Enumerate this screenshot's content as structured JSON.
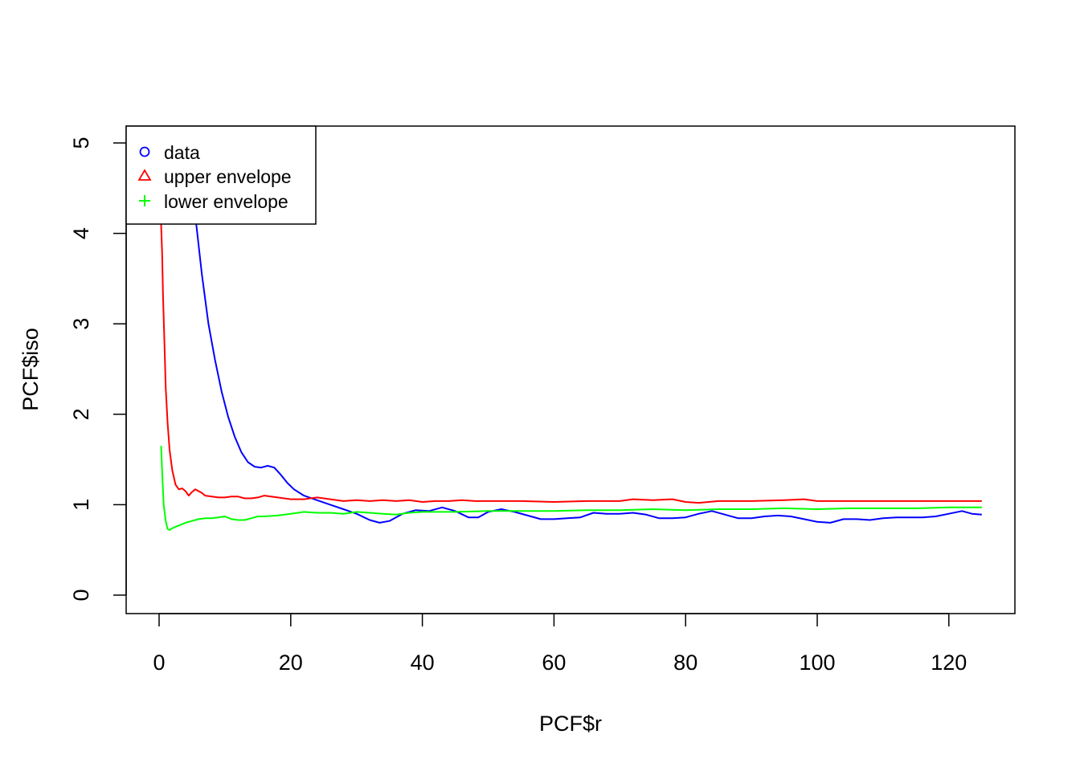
{
  "chart_data": {
    "type": "line",
    "xlabel": "PCF$r",
    "ylabel": "PCF$iso",
    "xlim": [
      -5,
      130
    ],
    "ylim": [
      -0.2,
      5.2
    ],
    "xticks": [
      0,
      20,
      40,
      60,
      80,
      100,
      120
    ],
    "yticks": [
      0,
      1,
      2,
      3,
      4,
      5
    ],
    "grid": false,
    "legend_position": "top-left",
    "series": [
      {
        "name": "data",
        "color": "#0000ff",
        "marker": "circle",
        "x": [
          4.0,
          5.5,
          6.5,
          7.5,
          8.5,
          9.5,
          10.5,
          11.5,
          12.5,
          13.5,
          14.5,
          15.5,
          16.5,
          17.5,
          18.5,
          19.5,
          20.5,
          22,
          24,
          26,
          28,
          30,
          32,
          33.5,
          35,
          37,
          39,
          41,
          43,
          45,
          47,
          48.5,
          50,
          52,
          54,
          56,
          58,
          60,
          62,
          64,
          66,
          68,
          70,
          72,
          74,
          76,
          78,
          80,
          82,
          84,
          86,
          88,
          90,
          92,
          94,
          96,
          98,
          100,
          102,
          104,
          106,
          108,
          110,
          112,
          114,
          116,
          118,
          120,
          122,
          123.5,
          125
        ],
        "y": [
          4.6,
          4.2,
          3.55,
          3.0,
          2.6,
          2.25,
          1.97,
          1.75,
          1.58,
          1.47,
          1.42,
          1.41,
          1.43,
          1.41,
          1.33,
          1.24,
          1.17,
          1.1,
          1.05,
          1.0,
          0.95,
          0.9,
          0.83,
          0.8,
          0.82,
          0.9,
          0.94,
          0.93,
          0.97,
          0.93,
          0.86,
          0.86,
          0.92,
          0.95,
          0.92,
          0.88,
          0.84,
          0.84,
          0.85,
          0.86,
          0.91,
          0.9,
          0.9,
          0.91,
          0.89,
          0.85,
          0.85,
          0.86,
          0.9,
          0.93,
          0.89,
          0.85,
          0.85,
          0.87,
          0.88,
          0.87,
          0.84,
          0.81,
          0.8,
          0.84,
          0.84,
          0.83,
          0.85,
          0.86,
          0.86,
          0.86,
          0.87,
          0.9,
          0.93,
          0.9,
          0.89
        ]
      },
      {
        "name": "upper envelope",
        "color": "#ff0000",
        "marker": "triangle",
        "x": [
          0.3,
          0.45,
          0.6,
          0.8,
          1.0,
          1.3,
          1.6,
          2.0,
          2.5,
          3.0,
          3.5,
          4.0,
          4.5,
          5.0,
          5.5,
          6.0,
          6.5,
          7.0,
          8.0,
          9.0,
          10.0,
          11.0,
          12.0,
          13.0,
          14.0,
          15.0,
          16.0,
          17.0,
          18.0,
          19.0,
          20.0,
          22.0,
          24.0,
          26.0,
          28.0,
          30.0,
          32.0,
          34.0,
          36.0,
          38.0,
          40.0,
          42.0,
          44.0,
          46.0,
          48.0,
          50.0,
          55.0,
          60.0,
          65.0,
          70.0,
          72.0,
          75.0,
          78.0,
          80.0,
          82.0,
          85.0,
          90.0,
          95.0,
          98.0,
          100.0,
          105.0,
          110.0,
          115.0,
          120.0,
          125.0
        ],
        "y": [
          4.1,
          3.8,
          3.3,
          2.8,
          2.3,
          1.9,
          1.6,
          1.38,
          1.22,
          1.17,
          1.18,
          1.15,
          1.1,
          1.14,
          1.17,
          1.15,
          1.13,
          1.1,
          1.09,
          1.08,
          1.08,
          1.09,
          1.09,
          1.07,
          1.07,
          1.08,
          1.1,
          1.09,
          1.08,
          1.07,
          1.06,
          1.06,
          1.08,
          1.06,
          1.04,
          1.05,
          1.04,
          1.05,
          1.04,
          1.05,
          1.03,
          1.04,
          1.04,
          1.05,
          1.04,
          1.04,
          1.04,
          1.03,
          1.04,
          1.04,
          1.06,
          1.05,
          1.06,
          1.03,
          1.02,
          1.04,
          1.04,
          1.05,
          1.06,
          1.04,
          1.04,
          1.04,
          1.04,
          1.04,
          1.04
        ]
      },
      {
        "name": "lower envelope",
        "color": "#00ff00",
        "marker": "plus",
        "x": [
          0.3,
          0.5,
          0.7,
          1.0,
          1.3,
          1.6,
          2.0,
          3.0,
          4.0,
          5.0,
          6.0,
          7.0,
          8.0,
          9.0,
          10.0,
          11.0,
          12.0,
          13.0,
          14.0,
          15.0,
          16.0,
          18.0,
          20.0,
          22.0,
          24.0,
          26.0,
          28.0,
          30.0,
          32.0,
          34.0,
          36.0,
          38.0,
          40.0,
          45.0,
          50.0,
          55.0,
          60.0,
          65.0,
          70.0,
          75.0,
          80.0,
          85.0,
          90.0,
          95.0,
          100.0,
          105.0,
          110.0,
          115.0,
          120.0,
          125.0
        ],
        "y": [
          1.65,
          1.3,
          1.0,
          0.82,
          0.73,
          0.72,
          0.74,
          0.77,
          0.8,
          0.82,
          0.84,
          0.85,
          0.85,
          0.86,
          0.87,
          0.84,
          0.83,
          0.83,
          0.85,
          0.87,
          0.87,
          0.88,
          0.9,
          0.92,
          0.91,
          0.91,
          0.9,
          0.92,
          0.91,
          0.9,
          0.89,
          0.91,
          0.92,
          0.92,
          0.93,
          0.93,
          0.93,
          0.94,
          0.94,
          0.95,
          0.94,
          0.95,
          0.95,
          0.96,
          0.95,
          0.96,
          0.96,
          0.96,
          0.97,
          0.97
        ]
      }
    ]
  },
  "legend": {
    "items": [
      {
        "label": "data",
        "color": "#0000ff",
        "marker": "circle"
      },
      {
        "label": "upper envelope",
        "color": "#ff0000",
        "marker": "triangle"
      },
      {
        "label": "lower envelope",
        "color": "#00ff00",
        "marker": "plus"
      }
    ]
  }
}
